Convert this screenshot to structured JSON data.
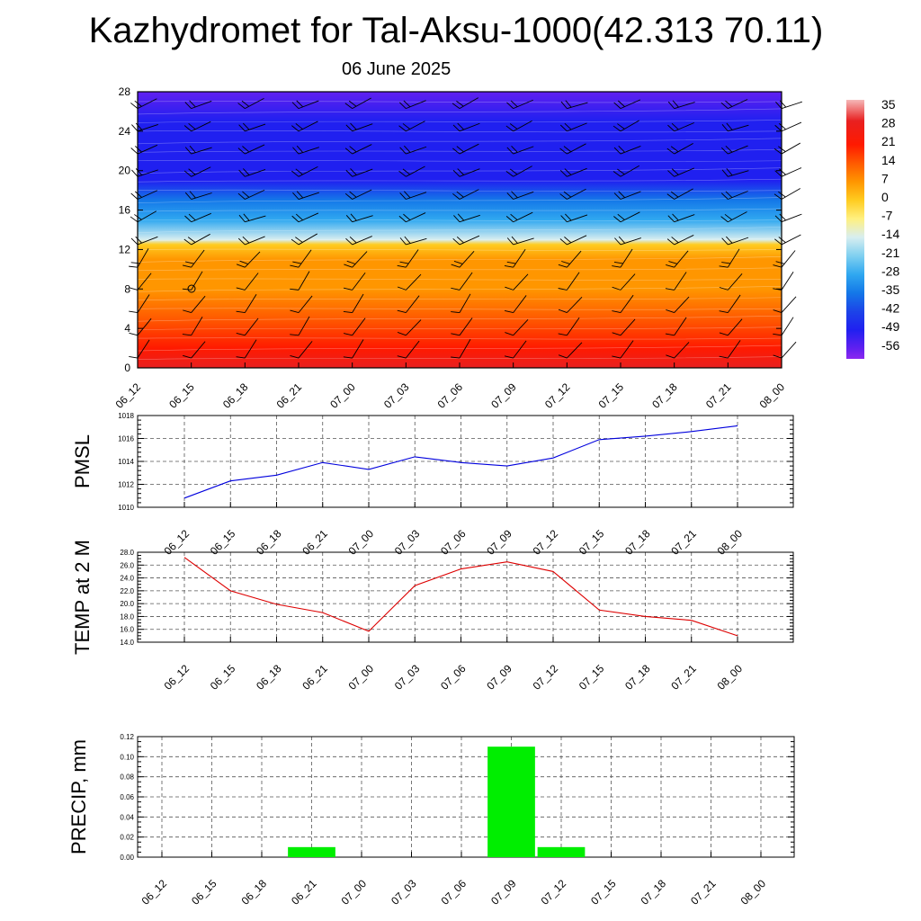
{
  "header": {
    "title": "Kazhydromet for Tal-Aksu-1000(42.313 70.11)",
    "date": "06 June 2025"
  },
  "colors": {
    "pmsl_line": "#0000dd",
    "temp_line": "#dd0000",
    "precip_bar": "#00ee00"
  },
  "chart_data": [
    {
      "type": "heatmap",
      "title": "",
      "x_ticks": [
        "06_12",
        "06_15",
        "06_18",
        "06_21",
        "07_00",
        "07_03",
        "07_06",
        "07_09",
        "07_12",
        "07_15",
        "07_18",
        "07_21",
        "08_00"
      ],
      "y_ticks": [
        "0",
        "4",
        "8",
        "12",
        "16",
        "20",
        "24",
        "28"
      ],
      "ylim": [
        0,
        28
      ],
      "colorbar_labels": [
        "35",
        "28",
        "21",
        "14",
        "7",
        "0",
        "-7",
        "-14",
        "-21",
        "-28",
        "-35",
        "-42",
        "-49",
        "-56"
      ],
      "colorbar_range": [
        -60,
        38
      ],
      "color_stops": [
        {
          "v": 38,
          "c": "#f5b8b8"
        },
        {
          "v": 30,
          "c": "#e82020"
        },
        {
          "v": 21,
          "c": "#ff1a00"
        },
        {
          "v": 14,
          "c": "#ff5a00"
        },
        {
          "v": 7,
          "c": "#ff9600"
        },
        {
          "v": 0,
          "c": "#ffcc20"
        },
        {
          "v": -7,
          "c": "#fff080"
        },
        {
          "v": -14,
          "c": "#d8eef0"
        },
        {
          "v": -21,
          "c": "#80d0f0"
        },
        {
          "v": -28,
          "c": "#30a8f0"
        },
        {
          "v": -35,
          "c": "#1478e8"
        },
        {
          "v": -42,
          "c": "#1c44e8"
        },
        {
          "v": -49,
          "c": "#2020f0"
        },
        {
          "v": -56,
          "c": "#6020f0"
        },
        {
          "v": -60,
          "c": "#8c28f0"
        }
      ],
      "profile": [
        {
          "h": 0,
          "v": 25
        },
        {
          "h": 2,
          "v": 20
        },
        {
          "h": 5,
          "v": 12
        },
        {
          "h": 8,
          "v": 5
        },
        {
          "h": 11,
          "v": 0
        },
        {
          "h": 12.5,
          "v": -6
        },
        {
          "h": 13,
          "v": -16
        },
        {
          "h": 15,
          "v": -30
        },
        {
          "h": 17,
          "v": -42
        },
        {
          "h": 19,
          "v": -52
        },
        {
          "h": 21,
          "v": -55
        },
        {
          "h": 23,
          "v": -52
        },
        {
          "h": 25,
          "v": -56
        },
        {
          "h": 28,
          "v": -60
        }
      ]
    },
    {
      "type": "line",
      "ylabel": "PMSL",
      "ylim": [
        1010,
        1018
      ],
      "y_ticks": [
        "1010",
        "1012",
        "1014",
        "1016",
        "1018"
      ],
      "x": [
        "06_12",
        "06_15",
        "06_18",
        "06_21",
        "07_00",
        "07_03",
        "07_06",
        "07_09",
        "07_12",
        "07_15",
        "07_18",
        "07_21",
        "08_00"
      ],
      "values": [
        1010.8,
        1012.3,
        1012.8,
        1013.9,
        1013.3,
        1014.4,
        1013.9,
        1013.6,
        1014.3,
        1015.9,
        1016.2,
        1016.6,
        1017.1
      ]
    },
    {
      "type": "line",
      "ylabel": "TEMP at 2 M",
      "ylim": [
        14,
        28
      ],
      "y_ticks": [
        "14.0",
        "16.0",
        "18.0",
        "20.0",
        "22.0",
        "24.0",
        "26.0",
        "28.0"
      ],
      "x": [
        "06_12",
        "06_15",
        "06_18",
        "06_21",
        "07_00",
        "07_03",
        "07_06",
        "07_09",
        "07_12",
        "07_15",
        "07_18",
        "07_21",
        "08_00"
      ],
      "values": [
        27.2,
        22.0,
        19.9,
        18.6,
        15.7,
        22.8,
        25.4,
        26.5,
        25.0,
        19.0,
        18.0,
        17.4,
        15.0
      ]
    },
    {
      "type": "bar",
      "ylabel": "PRECIP, mm",
      "ylim": [
        0,
        0.12
      ],
      "y_ticks": [
        "0.00",
        "0.02",
        "0.04",
        "0.06",
        "0.08",
        "0.10",
        "0.12"
      ],
      "x": [
        "06_12",
        "06_15",
        "06_18",
        "06_21",
        "07_00",
        "07_03",
        "07_06",
        "07_09",
        "07_12",
        "07_15",
        "07_18",
        "07_21",
        "08_00"
      ],
      "values": [
        0,
        0,
        0,
        0.01,
        0,
        0,
        0,
        0.11,
        0.01,
        0,
        0,
        0,
        0
      ]
    }
  ]
}
